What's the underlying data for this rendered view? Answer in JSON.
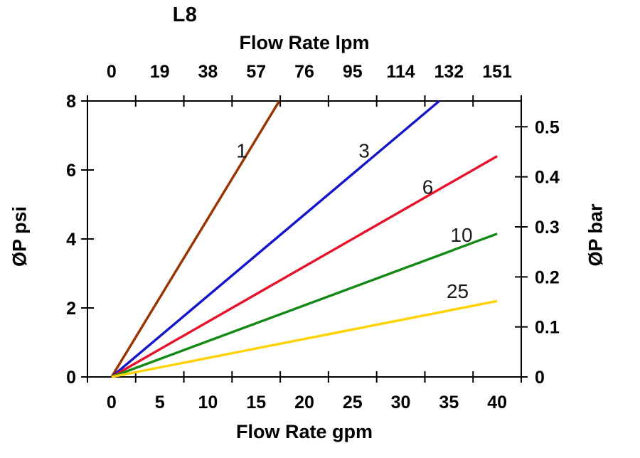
{
  "chart_data": {
    "type": "line",
    "title": "L8",
    "top_axis": {
      "label": "Flow Rate lpm",
      "tick_labels": [
        "0",
        "19",
        "38",
        "57",
        "76",
        "95",
        "114",
        "132",
        "151"
      ]
    },
    "bottom_axis": {
      "label": "Flow Rate gpm",
      "tick_labels": [
        "0",
        "5",
        "10",
        "15",
        "20",
        "25",
        "30",
        "35",
        "40"
      ],
      "range": [
        0,
        40
      ]
    },
    "left_axis": {
      "label": "ØP psi",
      "ticks": [
        0,
        2,
        4,
        6,
        8
      ],
      "range": [
        0,
        8
      ]
    },
    "right_axis": {
      "label": "ØP bar",
      "ticks": [
        0,
        0.1,
        0.2,
        0.3,
        0.4,
        0.5
      ],
      "psi_per_bar": 14.50377
    },
    "grid": "off",
    "series": [
      {
        "name": "1",
        "color": "#993300",
        "points": [
          [
            0,
            0
          ],
          [
            17.4,
            8.0
          ]
        ],
        "label_at": [
          13.5,
          6.55
        ]
      },
      {
        "name": "3",
        "color": "#1414CC",
        "points": [
          [
            0,
            0
          ],
          [
            34.0,
            8.0
          ]
        ],
        "label_at": [
          26.2,
          6.55
        ]
      },
      {
        "name": "6",
        "color": "#E8112A",
        "points": [
          [
            0,
            0
          ],
          [
            40.0,
            6.4
          ]
        ],
        "label_at": [
          32.8,
          5.5
        ]
      },
      {
        "name": "10",
        "color": "#128912",
        "points": [
          [
            0,
            0
          ],
          [
            40.0,
            4.15
          ]
        ],
        "label_at": [
          36.3,
          4.1
        ]
      },
      {
        "name": "25",
        "color": "#FFD200",
        "points": [
          [
            0,
            0
          ],
          [
            40.0,
            2.2
          ]
        ],
        "label_at": [
          35.9,
          2.47
        ]
      }
    ]
  }
}
